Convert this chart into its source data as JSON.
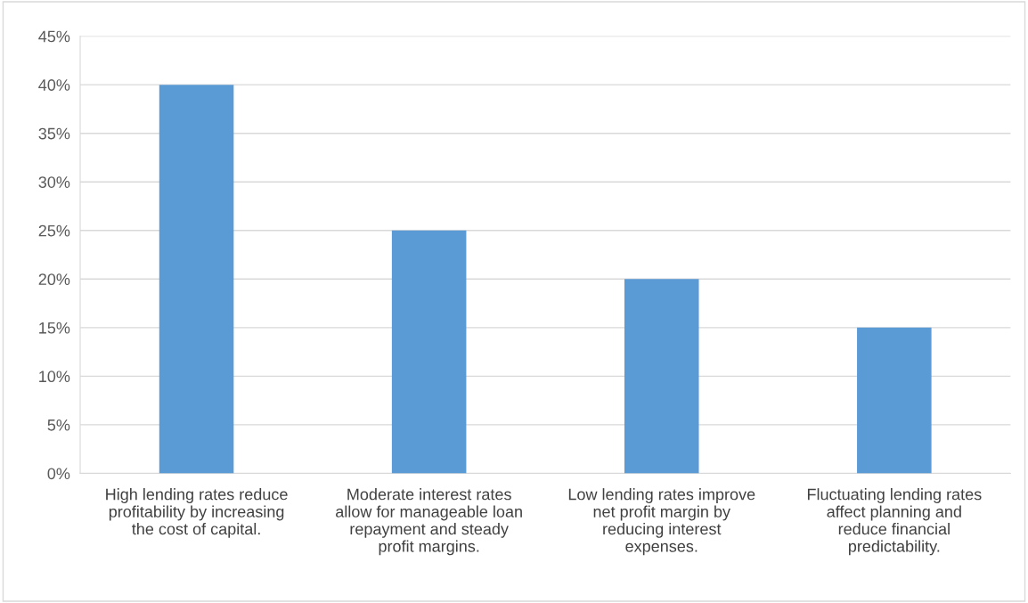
{
  "chart_data": {
    "type": "bar",
    "categories": [
      "High lending rates reduce\nprofitability by increasing\nthe cost of capital.",
      "Moderate interest rates\nallow for manageable loan\nrepayment and steady\nprofit margins.",
      "Low lending rates improve\nnet profit margin by\nreducing interest\nexpenses.",
      "Fluctuating lending rates\naffect planning and\nreduce financial\npredictability."
    ],
    "values": [
      40,
      25,
      20,
      15
    ],
    "color": "#5b9bd5",
    "ylim": [
      0,
      45
    ],
    "yticks": [
      {
        "value": 0,
        "label": "0%"
      },
      {
        "value": 5,
        "label": "5%"
      },
      {
        "value": 10,
        "label": "10%"
      },
      {
        "value": 15,
        "label": "15%"
      },
      {
        "value": 20,
        "label": "20%"
      },
      {
        "value": 25,
        "label": "25%"
      },
      {
        "value": 30,
        "label": "30%"
      },
      {
        "value": 35,
        "label": "35%"
      },
      {
        "value": 40,
        "label": "40%"
      },
      {
        "value": 45,
        "label": "45%"
      }
    ],
    "grid": "y"
  }
}
